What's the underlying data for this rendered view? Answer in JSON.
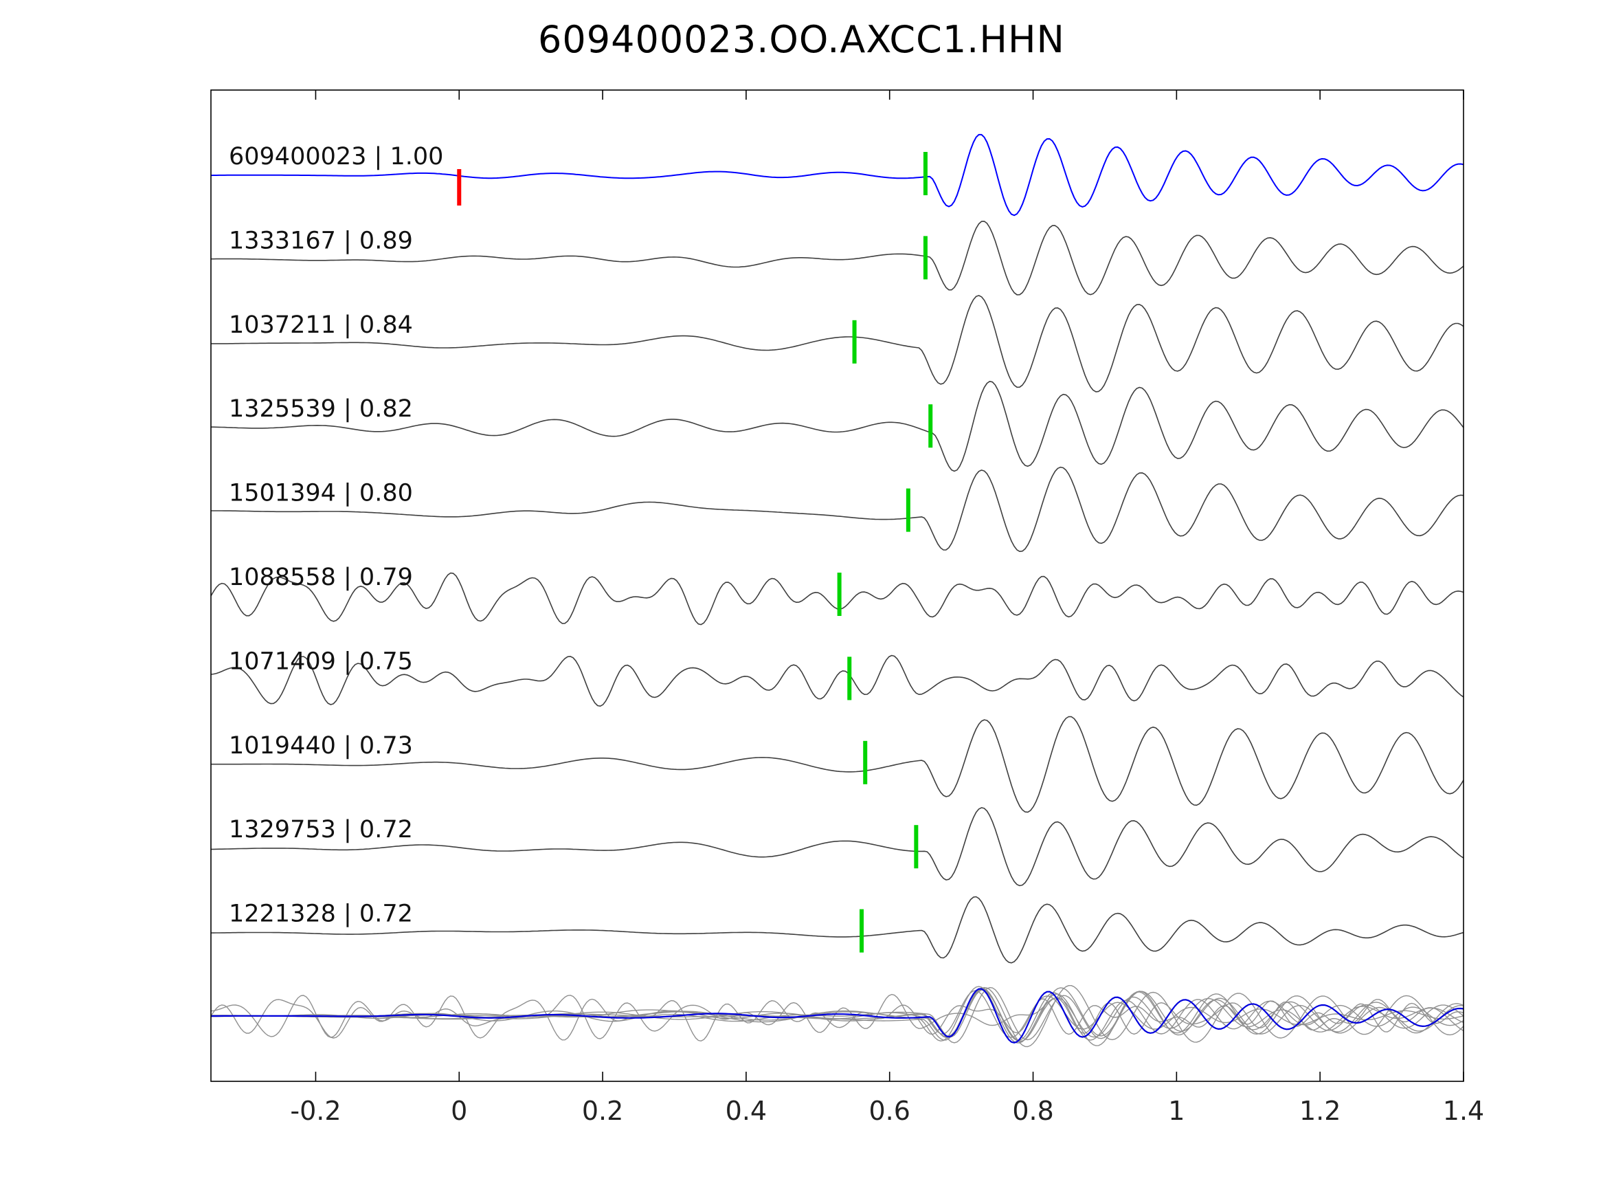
{
  "chart_data": {
    "type": "line",
    "title": "609400023.OO.AXCC1.HHN",
    "xlabel": "",
    "ylabel": "",
    "xlim": [
      -0.346,
      1.4
    ],
    "x_ticks": [
      -0.2,
      0,
      0.2,
      0.4,
      0.6,
      0.8,
      1,
      1.2,
      1.4
    ],
    "x_tick_labels": [
      "-0.2",
      "0",
      "0.2",
      "0.4",
      "0.6",
      "0.8",
      "1",
      "1.2",
      "1.4"
    ],
    "grid": false,
    "legend": "none",
    "colors": {
      "reference_trace": "#0000ff",
      "member_trace": "#3f3f3f",
      "pick_marker": "#00d400",
      "reference_pick_marker": "#ff0000",
      "stack_members": "#909090",
      "stack_reference": "#0000dd",
      "axis": "#000000",
      "label_text": "#111111"
    },
    "traces": [
      {
        "id": "609400023",
        "cc": "1.00",
        "label": "609400023 | 1.00",
        "color": "#0000ff",
        "pick_x": 0.65,
        "ref_pick_x": 0.0,
        "synth": {
          "seed": 11,
          "noise_amp": 0.07,
          "noise_fmax": 8,
          "noise_ramp": true,
          "signal_amp": 1.0,
          "onset": 0.655,
          "freq": 10.5,
          "decay": 0.45,
          "row_amp": 75
        }
      },
      {
        "id": "1333167",
        "cc": "0.89",
        "label": "1333167 | 0.89",
        "color": "#3f3f3f",
        "pick_x": 0.65,
        "synth": {
          "seed": 23,
          "noise_amp": 0.12,
          "noise_fmax": 9,
          "noise_ramp": true,
          "signal_amp": 1.0,
          "onset": 0.655,
          "freq": 10.0,
          "decay": 0.5,
          "row_amp": 70
        }
      },
      {
        "id": "1037211",
        "cc": "0.84",
        "label": "1037211 | 0.84",
        "color": "#3f3f3f",
        "pick_x": 0.551,
        "synth": {
          "seed": 37,
          "noise_amp": 0.14,
          "noise_fmax": 7,
          "noise_ramp": true,
          "signal_amp": 1.0,
          "onset": 0.64,
          "freq": 9.0,
          "decay": 0.85,
          "row_amp": 78
        }
      },
      {
        "id": "1325539",
        "cc": "0.82",
        "label": "1325539 | 0.82",
        "color": "#3f3f3f",
        "pick_x": 0.657,
        "synth": {
          "seed": 41,
          "noise_amp": 0.15,
          "noise_fmax": 7,
          "noise_ramp": true,
          "signal_amp": 1.0,
          "onset": 0.66,
          "freq": 9.5,
          "decay": 0.6,
          "row_amp": 78
        }
      },
      {
        "id": "1501394",
        "cc": "0.80",
        "label": "1501394 | 0.80",
        "color": "#3f3f3f",
        "pick_x": 0.626,
        "synth": {
          "seed": 53,
          "noise_amp": 0.14,
          "noise_fmax": 7,
          "noise_ramp": true,
          "signal_amp": 1.0,
          "onset": 0.645,
          "freq": 9.0,
          "decay": 0.65,
          "row_amp": 76
        }
      },
      {
        "id": "1088558",
        "cc": "0.79",
        "label": "1088558 | 0.79",
        "color": "#3f3f3f",
        "pick_x": 0.53,
        "synth": {
          "seed": 67,
          "noise_amp": 0.6,
          "noise_fmax": 16,
          "noise_ramp": false,
          "signal_amp": 0.5,
          "onset": 0.64,
          "freq": 9.0,
          "decay": 0.5,
          "row_amp": 55
        }
      },
      {
        "id": "1071409",
        "cc": "0.75",
        "label": "1071409 | 0.75",
        "color": "#3f3f3f",
        "pick_x": 0.544,
        "synth": {
          "seed": 71,
          "noise_amp": 0.6,
          "noise_fmax": 17,
          "noise_ramp": false,
          "signal_amp": 0.45,
          "onset": 0.645,
          "freq": 9.0,
          "decay": 0.5,
          "row_amp": 55
        }
      },
      {
        "id": "1019440",
        "cc": "0.73",
        "label": "1019440 | 0.73",
        "color": "#3f3f3f",
        "pick_x": 0.566,
        "synth": {
          "seed": 83,
          "noise_amp": 0.12,
          "noise_fmax": 6,
          "noise_ramp": true,
          "signal_amp": 1.0,
          "onset": 0.645,
          "freq": 8.5,
          "decay": 1.2,
          "row_amp": 75
        }
      },
      {
        "id": "1329753",
        "cc": "0.72",
        "label": "1329753 | 0.72",
        "color": "#3f3f3f",
        "pick_x": 0.637,
        "synth": {
          "seed": 97,
          "noise_amp": 0.16,
          "noise_fmax": 6,
          "noise_ramp": true,
          "signal_amp": 1.0,
          "onset": 0.65,
          "freq": 9.5,
          "decay": 0.45,
          "row_amp": 70
        }
      },
      {
        "id": "1221328",
        "cc": "0.72",
        "label": "1221328 | 0.72",
        "color": "#3f3f3f",
        "pick_x": 0.561,
        "synth": {
          "seed": 13,
          "noise_amp": 0.13,
          "noise_fmax": 7,
          "noise_ramp": true,
          "signal_amp": 1.0,
          "onset": 0.645,
          "freq": 10.0,
          "decay": 0.3,
          "row_amp": 68
        }
      }
    ],
    "stack": {
      "member_amp": 48,
      "reference_amp": 50
    }
  }
}
